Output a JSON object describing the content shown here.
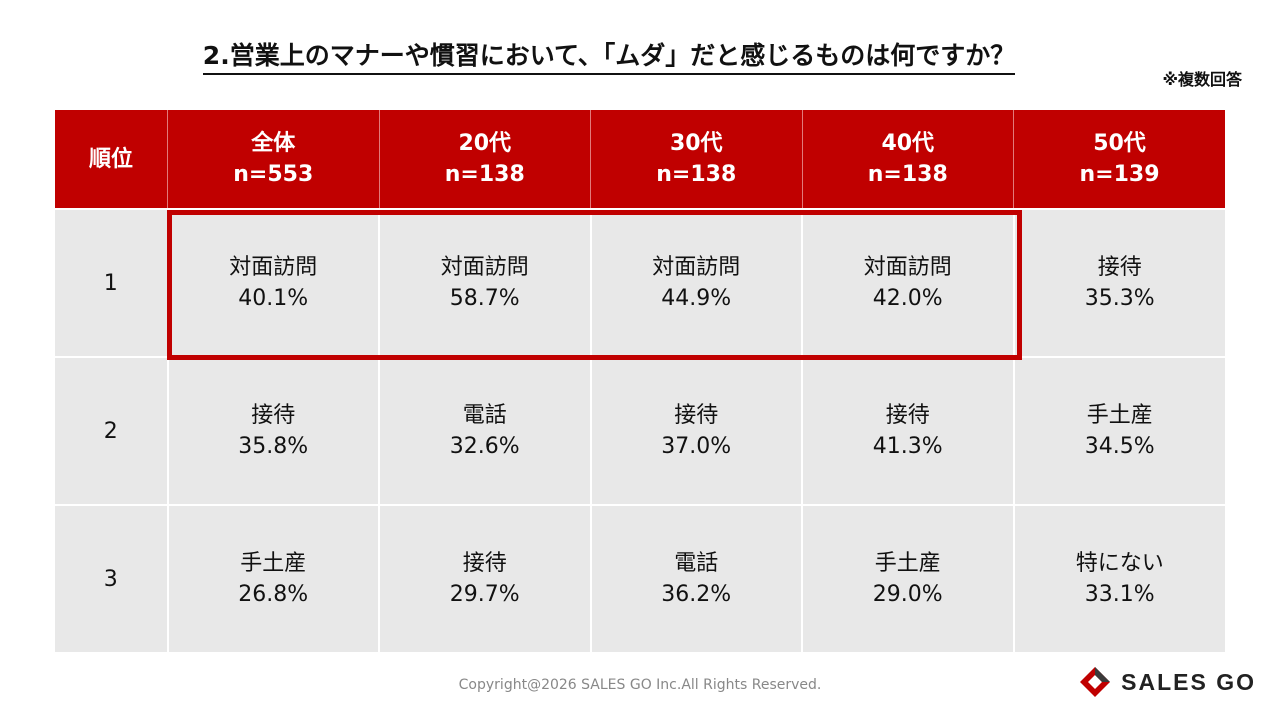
{
  "title": "2.営業上のマナーや慣習において、「ムダ」だと感じるものは何ですか？",
  "note": "※複数回答",
  "table": {
    "rank_header": "順位",
    "columns": [
      {
        "label": "全体",
        "n": "n=553"
      },
      {
        "label": "20代",
        "n": "n=138"
      },
      {
        "label": "30代",
        "n": "n=138"
      },
      {
        "label": "40代",
        "n": "n=138"
      },
      {
        "label": "50代",
        "n": "n=139"
      }
    ],
    "rows": [
      {
        "rank": "1",
        "cells": [
          {
            "item": "対面訪問",
            "pct": "40.1%"
          },
          {
            "item": "対面訪問",
            "pct": "58.7%"
          },
          {
            "item": "対面訪問",
            "pct": "44.9%"
          },
          {
            "item": "対面訪問",
            "pct": "42.0%"
          },
          {
            "item": "接待",
            "pct": "35.3%"
          }
        ]
      },
      {
        "rank": "2",
        "cells": [
          {
            "item": "接待",
            "pct": "35.8%"
          },
          {
            "item": "電話",
            "pct": "32.6%"
          },
          {
            "item": "接待",
            "pct": "37.0%"
          },
          {
            "item": "接待",
            "pct": "41.3%"
          },
          {
            "item": "手土産",
            "pct": "34.5%"
          }
        ]
      },
      {
        "rank": "3",
        "cells": [
          {
            "item": "手土産",
            "pct": "26.8%"
          },
          {
            "item": "接待",
            "pct": "29.7%"
          },
          {
            "item": "電話",
            "pct": "36.2%"
          },
          {
            "item": "手土産",
            "pct": "29.0%"
          },
          {
            "item": "特にない",
            "pct": "33.1%"
          }
        ]
      }
    ]
  },
  "highlight_color": "#c00000",
  "header_color": "#c00000",
  "cell_color": "#e8e8e8",
  "footer": {
    "copyright": "Copyright@2026 SALES GO Inc.All Rights Reserved.",
    "logo_text": "SALES GO",
    "logo_icon": "diamond-logo-icon"
  }
}
